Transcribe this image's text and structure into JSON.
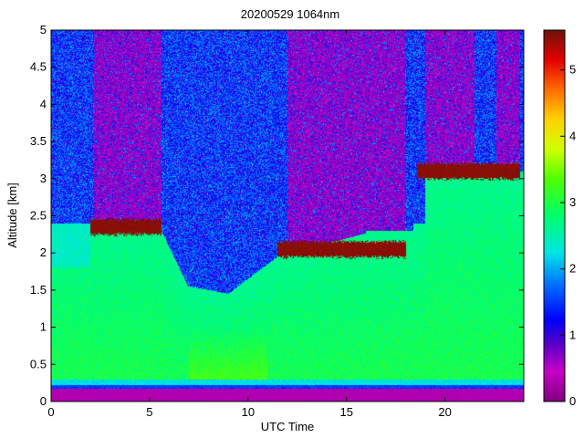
{
  "chart_data": {
    "type": "heatmap",
    "title": "20200529 1064nm",
    "xlabel": "UTC Time",
    "ylabel": "Altitude [km]",
    "xlim": [
      0,
      24
    ],
    "ylim": [
      0,
      5
    ],
    "x_ticks": [
      0,
      5,
      10,
      15,
      20
    ],
    "y_ticks": [
      0,
      0.5,
      1,
      1.5,
      2,
      2.5,
      3,
      3.5,
      4,
      4.5,
      5
    ],
    "colorbar": {
      "range": [
        0,
        5.6
      ],
      "ticks": [
        0,
        1,
        2,
        3,
        4,
        5
      ],
      "colormap": "jet-with-purple-low"
    },
    "description_values": {
      "surface_purple_band_top_km": 0.2,
      "cloud_layers": [
        {
          "x_start": 2.0,
          "x_end": 5.6,
          "altitude_km": 2.35
        },
        {
          "x_start": 11.5,
          "x_end": 18.0,
          "altitude_km": 2.05
        },
        {
          "x_start": 18.6,
          "x_end": 23.8,
          "altitude_km": 3.1
        }
      ]
    }
  }
}
